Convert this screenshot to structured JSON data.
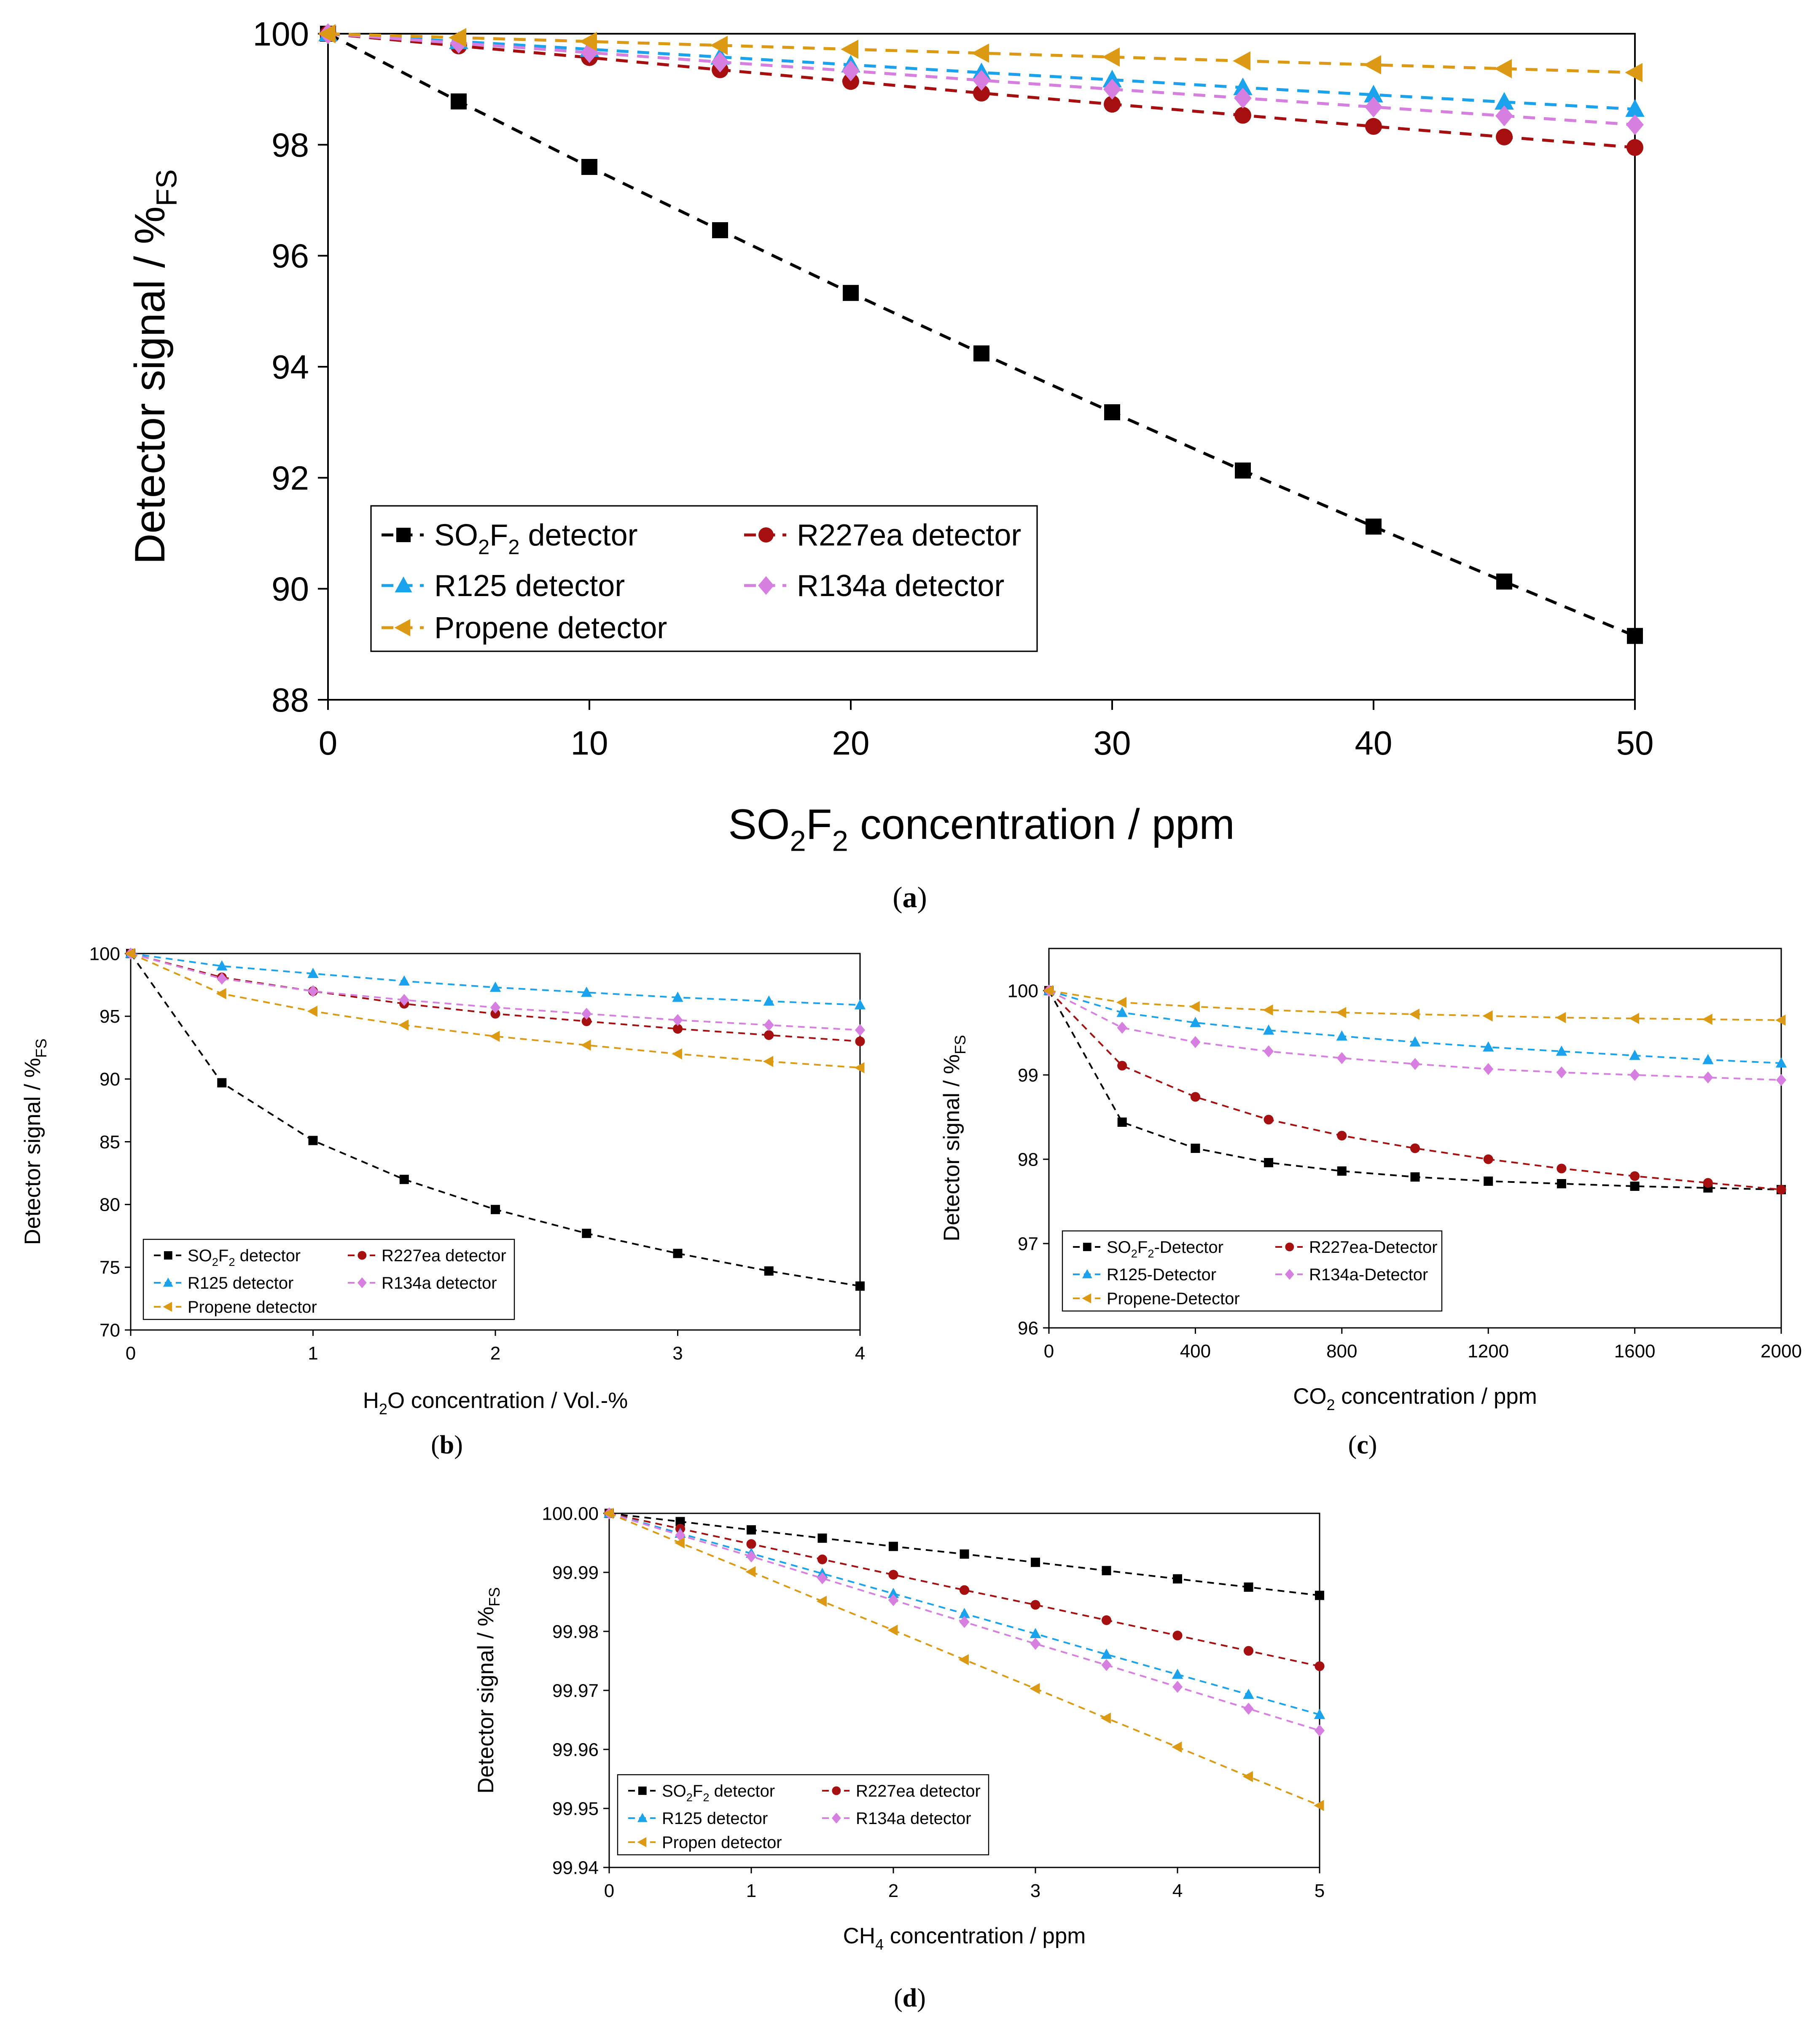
{
  "chart_data": [
    {
      "id": "a",
      "type": "line",
      "panel_label": "(a)",
      "xlabel": "SO2F2 concentration / ppm",
      "xlabel_parts": [
        {
          "t": "SO"
        },
        {
          "t": "2",
          "sub": true
        },
        {
          "t": "F"
        },
        {
          "t": "2",
          "sub": true
        },
        {
          "t": " concentration / ppm"
        }
      ],
      "ylabel": "Detector signal / %FS",
      "ylabel_parts": [
        {
          "t": "Detector signal / %"
        },
        {
          "t": "FS",
          "sub": true
        }
      ],
      "xlim": [
        0,
        50
      ],
      "ylim": [
        88,
        100
      ],
      "xticks": [
        "0",
        "10",
        "20",
        "30",
        "40",
        "50"
      ],
      "yticks": [
        "88",
        "90",
        "92",
        "94",
        "96",
        "98",
        "100"
      ],
      "legend_position": "bottom-left",
      "x": [
        0,
        5,
        10,
        15,
        20,
        25,
        30,
        35,
        40,
        45,
        50
      ],
      "series": [
        {
          "name": "SO2F2 detector",
          "label_parts": [
            {
              "t": "SO"
            },
            {
              "t": "2",
              "sub": true
            },
            {
              "t": "F"
            },
            {
              "t": "2",
              "sub": true
            },
            {
              "t": " detector"
            }
          ],
          "color": "#000000",
          "marker": "square",
          "values": [
            100,
            98.78,
            97.6,
            96.46,
            95.33,
            94.24,
            93.18,
            92.13,
            91.12,
            90.13,
            89.15
          ]
        },
        {
          "name": "R227ea detector",
          "label_parts": [
            {
              "t": "R227ea detector"
            }
          ],
          "color": "#a50f0f",
          "marker": "circle",
          "values": [
            100,
            99.78,
            99.57,
            99.35,
            99.14,
            98.93,
            98.73,
            98.53,
            98.33,
            98.14,
            97.95
          ]
        },
        {
          "name": "R125 detector",
          "label_parts": [
            {
              "t": "R125 detector"
            }
          ],
          "color": "#1aa3ec",
          "marker": "triangle-up",
          "values": [
            100,
            99.86,
            99.72,
            99.58,
            99.44,
            99.3,
            99.17,
            99.03,
            98.9,
            98.77,
            98.64
          ]
        },
        {
          "name": "R134a detector",
          "label_parts": [
            {
              "t": "R134a detector"
            }
          ],
          "color": "#d67fe0",
          "marker": "diamond",
          "values": [
            100,
            99.83,
            99.66,
            99.49,
            99.33,
            99.16,
            99,
            98.84,
            98.68,
            98.52,
            98.36
          ]
        },
        {
          "name": "Propene detector",
          "label_parts": [
            {
              "t": "Propene detector"
            }
          ],
          "color": "#dc9a14",
          "marker": "triangle-left",
          "values": [
            100,
            99.93,
            99.86,
            99.79,
            99.72,
            99.65,
            99.58,
            99.51,
            99.44,
            99.37,
            99.3
          ]
        }
      ]
    },
    {
      "id": "b",
      "type": "line",
      "panel_label": "(b)",
      "xlabel": "H2O concentration / Vol.-%",
      "xlabel_parts": [
        {
          "t": "H"
        },
        {
          "t": "2",
          "sub": true
        },
        {
          "t": "O concentration / Vol.-%"
        }
      ],
      "ylabel": "Detector signal / %FS",
      "ylabel_parts": [
        {
          "t": "Detector signal / %"
        },
        {
          "t": "FS",
          "sub": true
        }
      ],
      "xlim": [
        0,
        4
      ],
      "ylim": [
        70,
        100
      ],
      "xticks": [
        "0",
        "1",
        "2",
        "3",
        "4"
      ],
      "yticks": [
        "70",
        "75",
        "80",
        "85",
        "90",
        "95",
        "100"
      ],
      "legend_position": "bottom-left",
      "x": [
        0,
        0.5,
        1,
        1.5,
        2,
        2.5,
        3,
        3.5,
        4
      ],
      "series": [
        {
          "name": "SO2F2 detector",
          "label_parts": [
            {
              "t": "SO"
            },
            {
              "t": "2",
              "sub": true
            },
            {
              "t": "F"
            },
            {
              "t": "2",
              "sub": true
            },
            {
              "t": " detector"
            }
          ],
          "color": "#000000",
          "marker": "square",
          "values": [
            100,
            89.7,
            85.1,
            82,
            79.6,
            77.7,
            76.1,
            74.7,
            73.5
          ]
        },
        {
          "name": "R227ea detector",
          "label_parts": [
            {
              "t": "R227ea detector"
            }
          ],
          "color": "#a50f0f",
          "marker": "circle",
          "values": [
            100,
            98.1,
            97,
            96,
            95.2,
            94.6,
            94,
            93.5,
            93
          ]
        },
        {
          "name": "R125 detector",
          "label_parts": [
            {
              "t": "R125 detector"
            }
          ],
          "color": "#1aa3ec",
          "marker": "triangle-up",
          "values": [
            100,
            99,
            98.4,
            97.8,
            97.3,
            96.9,
            96.5,
            96.2,
            95.9
          ]
        },
        {
          "name": "R134a detector",
          "label_parts": [
            {
              "t": "R134a detector"
            }
          ],
          "color": "#d67fe0",
          "marker": "diamond",
          "values": [
            100,
            98,
            97,
            96.3,
            95.7,
            95.2,
            94.7,
            94.3,
            93.9
          ]
        },
        {
          "name": "Propene detector",
          "label_parts": [
            {
              "t": "Propene detector"
            }
          ],
          "color": "#dc9a14",
          "marker": "triangle-left",
          "values": [
            100,
            96.8,
            95.4,
            94.3,
            93.4,
            92.7,
            92,
            91.4,
            90.9
          ]
        }
      ]
    },
    {
      "id": "c",
      "type": "line",
      "panel_label": "(c)",
      "xlabel": "CO2 concentration / ppm",
      "xlabel_parts": [
        {
          "t": "CO"
        },
        {
          "t": "2",
          "sub": true
        },
        {
          "t": " concentration / ppm"
        }
      ],
      "ylabel": "Detector signal / %FS",
      "ylabel_parts": [
        {
          "t": "Detector signal / %"
        },
        {
          "t": "FS",
          "sub": true
        }
      ],
      "xlim": [
        0,
        2000
      ],
      "ylim": [
        96,
        100.5
      ],
      "xticks": [
        "0",
        "400",
        "800",
        "1200",
        "1600",
        "2000"
      ],
      "xtick_values": [
        0,
        400,
        800,
        1200,
        1600,
        2000
      ],
      "yticks": [
        "96",
        "97",
        "98",
        "99",
        "100"
      ],
      "ytick_values": [
        96,
        97,
        98,
        99,
        100
      ],
      "legend_position": "bottom-left",
      "x": [
        0,
        200,
        400,
        600,
        800,
        1000,
        1200,
        1400,
        1600,
        1800,
        2000
      ],
      "series": [
        {
          "name": "SO2F2-Detector",
          "label_parts": [
            {
              "t": "SO"
            },
            {
              "t": "2",
              "sub": true
            },
            {
              "t": "F"
            },
            {
              "t": "2",
              "sub": true
            },
            {
              "t": "-Detector"
            }
          ],
          "color": "#000000",
          "marker": "square",
          "values": [
            100,
            98.44,
            98.13,
            97.96,
            97.86,
            97.79,
            97.74,
            97.71,
            97.68,
            97.66,
            97.64
          ]
        },
        {
          "name": "R227ea-Detector",
          "label_parts": [
            {
              "t": "R227ea-Detector"
            }
          ],
          "color": "#a50f0f",
          "marker": "circle",
          "values": [
            100,
            99.11,
            98.74,
            98.47,
            98.28,
            98.13,
            98,
            97.89,
            97.8,
            97.72,
            97.64
          ]
        },
        {
          "name": "R125-Detector",
          "label_parts": [
            {
              "t": "R125-Detector"
            }
          ],
          "color": "#1aa3ec",
          "marker": "triangle-up",
          "values": [
            100,
            99.74,
            99.62,
            99.53,
            99.46,
            99.39,
            99.33,
            99.28,
            99.23,
            99.18,
            99.14
          ]
        },
        {
          "name": "R134a-Detector",
          "label_parts": [
            {
              "t": "R134a-Detector"
            }
          ],
          "color": "#d67fe0",
          "marker": "diamond",
          "values": [
            100,
            99.56,
            99.39,
            99.28,
            99.2,
            99.13,
            99.07,
            99.03,
            99,
            98.97,
            98.94
          ]
        },
        {
          "name": "Propene-Detector",
          "label_parts": [
            {
              "t": "Propene-Detector"
            }
          ],
          "color": "#dc9a14",
          "marker": "triangle-left",
          "values": [
            100,
            99.86,
            99.81,
            99.77,
            99.74,
            99.72,
            99.7,
            99.68,
            99.67,
            99.66,
            99.65
          ]
        }
      ]
    },
    {
      "id": "d",
      "type": "line",
      "panel_label": "(d)",
      "xlabel": "CH4 concentration / ppm",
      "xlabel_parts": [
        {
          "t": "CH"
        },
        {
          "t": "4",
          "sub": true
        },
        {
          "t": " concentration / ppm"
        }
      ],
      "ylabel": "Detector signal / %FS",
      "ylabel_parts": [
        {
          "t": "Detector signal / %"
        },
        {
          "t": "FS",
          "sub": true
        }
      ],
      "xlim": [
        0,
        5
      ],
      "ylim": [
        99.94,
        100
      ],
      "xticks": [
        "0",
        "1",
        "2",
        "3",
        "4",
        "5"
      ],
      "yticks": [
        "99.94",
        "99.95",
        "99.96",
        "99.97",
        "99.98",
        "99.99",
        "100.00"
      ],
      "ytick_values": [
        99.94,
        99.95,
        99.96,
        99.97,
        99.98,
        99.99,
        100
      ],
      "legend_position": "bottom-left",
      "x": [
        0,
        0.5,
        1,
        1.5,
        2,
        2.5,
        3,
        3.5,
        4,
        4.5,
        5
      ],
      "series": [
        {
          "name": "SO2F2 detector",
          "label_parts": [
            {
              "t": "SO"
            },
            {
              "t": "2",
              "sub": true
            },
            {
              "t": "F"
            },
            {
              "t": "2",
              "sub": true
            },
            {
              "t": " detector"
            }
          ],
          "color": "#000000",
          "marker": "square",
          "values": [
            100,
            99.9986,
            99.9972,
            99.9958,
            99.9944,
            99.9931,
            99.9917,
            99.9903,
            99.9889,
            99.9875,
            99.9861
          ]
        },
        {
          "name": "R227ea detector",
          "label_parts": [
            {
              "t": "R227ea detector"
            }
          ],
          "color": "#a50f0f",
          "marker": "circle",
          "values": [
            100,
            99.9974,
            99.9948,
            99.9922,
            99.9896,
            99.987,
            99.9845,
            99.9819,
            99.9793,
            99.9767,
            99.9741
          ]
        },
        {
          "name": "R125 detector",
          "label_parts": [
            {
              "t": "R125 detector"
            }
          ],
          "color": "#1aa3ec",
          "marker": "triangle-up",
          "values": [
            100,
            99.9966,
            99.9932,
            99.9898,
            99.9864,
            99.983,
            99.9796,
            99.9761,
            99.9727,
            99.9693,
            99.9659
          ]
        },
        {
          "name": "R134a detector",
          "label_parts": [
            {
              "t": "R134a detector"
            }
          ],
          "color": "#d67fe0",
          "marker": "diamond",
          "values": [
            100,
            99.9963,
            99.9927,
            99.989,
            99.9853,
            99.9816,
            99.9779,
            99.9743,
            99.9706,
            99.9669,
            99.9632
          ]
        },
        {
          "name": "Propen detector",
          "label_parts": [
            {
              "t": "Propen detector"
            }
          ],
          "color": "#dc9a14",
          "marker": "triangle-left",
          "values": [
            100,
            99.995,
            99.9901,
            99.9851,
            99.9802,
            99.9752,
            99.9703,
            99.9653,
            99.9604,
            99.9554,
            99.9505
          ]
        }
      ]
    }
  ]
}
